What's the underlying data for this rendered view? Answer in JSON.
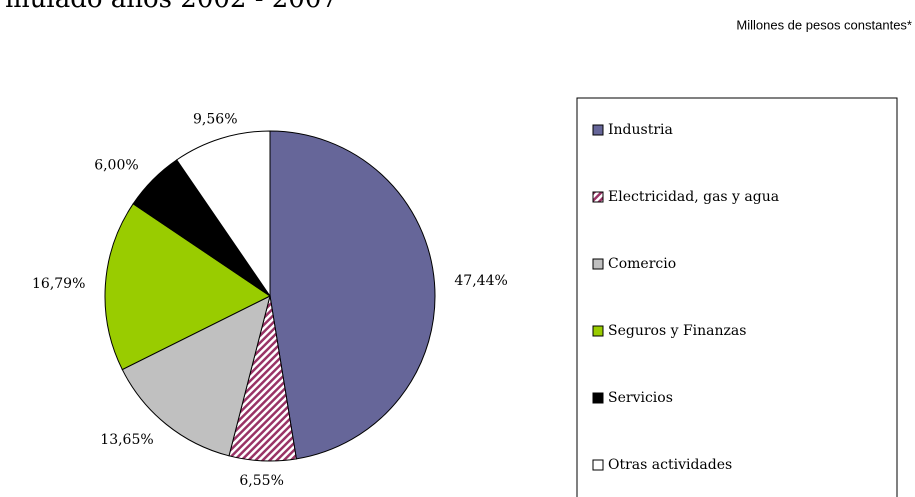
{
  "chart_data": {
    "type": "pie",
    "title": "mulado años 2002 - 2007",
    "subtitle": "Millones de pesos constantes*",
    "categories": [
      "Industria",
      "Electricidad, gas y agua",
      "Comercio",
      "Seguros y Finanzas",
      "Servicios",
      "Otras actividades"
    ],
    "values": [
      47.44,
      6.55,
      13.65,
      16.79,
      6.0,
      9.56
    ],
    "value_labels": [
      "47,44%",
      "6,55%",
      "13,65%",
      "16,79%",
      "6,00%",
      "9,56%"
    ],
    "colors": [
      "#666699",
      "#993366",
      "#c0c0c0",
      "#99cc00",
      "#000000",
      "#ffffff"
    ],
    "patterns": [
      "solid",
      "diagonal",
      "solid",
      "solid",
      "solid",
      "solid"
    ],
    "legend": "right"
  }
}
